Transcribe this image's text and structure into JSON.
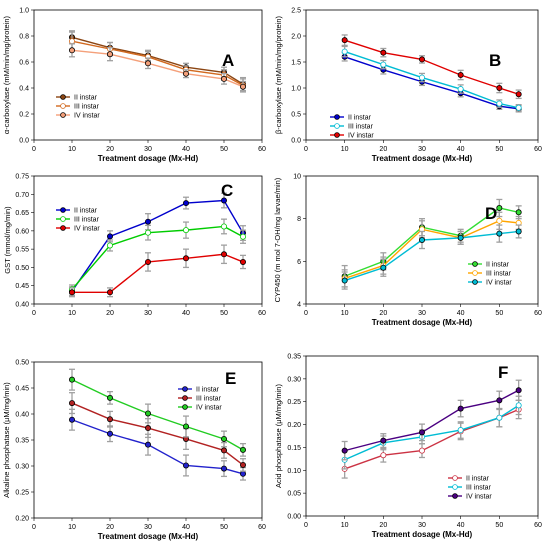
{
  "figure": {
    "chart_data": [
      {
        "type": "line",
        "panel_label": "A",
        "xlabel": "Treatment dosage (Mx-Hd)",
        "ylabel": "α-carboxylase (mM/min/mg/protein)",
        "xlim": [
          0,
          60
        ],
        "ylim": [
          0.0,
          1.0
        ],
        "xticks": [
          0,
          10,
          20,
          30,
          40,
          50,
          60
        ],
        "yticks": [
          0.0,
          0.2,
          0.4,
          0.6,
          0.8,
          1.0
        ],
        "x": [
          10,
          20,
          30,
          40,
          50,
          55
        ],
        "legend_position": "bottom-left",
        "series": [
          {
            "name": "II instar",
            "color": "#8b4513",
            "marker": "filled",
            "values": [
              0.79,
              0.71,
              0.65,
              0.56,
              0.52,
              0.43
            ],
            "errors": [
              0.05,
              0.04,
              0.04,
              0.03,
              0.04,
              0.05
            ]
          },
          {
            "name": "III instar",
            "color": "#d2691e",
            "marker": "open",
            "values": [
              0.76,
              0.7,
              0.64,
              0.54,
              0.5,
              0.42
            ],
            "errors": [
              0.07,
              0.05,
              0.04,
              0.03,
              0.04,
              0.05
            ]
          },
          {
            "name": "IV instar",
            "color": "#f4a07a",
            "marker": "filled",
            "values": [
              0.69,
              0.66,
              0.59,
              0.51,
              0.47,
              0.41
            ],
            "errors": [
              0.05,
              0.05,
              0.04,
              0.03,
              0.04,
              0.04
            ]
          }
        ]
      },
      {
        "type": "line",
        "panel_label": "B",
        "xlabel": "Treatment dosage (Mx-Hd)",
        "ylabel": "β-carboxylase (mM/min/mg/protein)",
        "xlim": [
          0,
          60
        ],
        "ylim": [
          0.0,
          2.5
        ],
        "xticks": [
          0,
          10,
          20,
          30,
          40,
          50,
          60
        ],
        "yticks": [
          0.0,
          0.5,
          1.0,
          1.5,
          2.0,
          2.5
        ],
        "x": [
          10,
          20,
          30,
          40,
          50,
          55
        ],
        "legend_position": "bottom-left",
        "series": [
          {
            "name": "II instar",
            "color": "#0000cc",
            "marker": "filled",
            "values": [
              1.6,
              1.35,
              1.12,
              0.9,
              0.65,
              0.6
            ],
            "errors": [
              0.08,
              0.08,
              0.07,
              0.07,
              0.06,
              0.06
            ]
          },
          {
            "name": "III instar",
            "color": "#00bcd4",
            "marker": "open",
            "values": [
              1.7,
              1.45,
              1.2,
              0.98,
              0.7,
              0.62
            ],
            "errors": [
              0.1,
              0.08,
              0.08,
              0.08,
              0.07,
              0.06
            ]
          },
          {
            "name": "IV instar",
            "color": "#e00000",
            "marker": "filled",
            "values": [
              1.92,
              1.68,
              1.55,
              1.25,
              1.0,
              0.88
            ],
            "errors": [
              0.1,
              0.08,
              0.07,
              0.09,
              0.09,
              0.08
            ]
          }
        ]
      },
      {
        "type": "line",
        "panel_label": "C",
        "xlabel": "",
        "ylabel": "GST (mmol/mg/min)",
        "xlim": [
          0,
          60
        ],
        "ylim": [
          0.4,
          0.75
        ],
        "xticks": [
          0,
          10,
          20,
          30,
          40,
          50,
          60
        ],
        "yticks": [
          0.4,
          0.45,
          0.5,
          0.55,
          0.6,
          0.65,
          0.7,
          0.75
        ],
        "x": [
          10,
          20,
          30,
          40,
          50,
          55
        ],
        "legend_position": "top-left",
        "series": [
          {
            "name": "II instar",
            "color": "#0000cc",
            "marker": "filled",
            "values": [
              0.435,
              0.585,
              0.625,
              0.676,
              0.683,
              0.594
            ],
            "errors": [
              0.012,
              0.015,
              0.022,
              0.016,
              0.02,
              0.02
            ]
          },
          {
            "name": "III instar",
            "color": "#00cc00",
            "marker": "open",
            "values": [
              0.44,
              0.56,
              0.595,
              0.602,
              0.612,
              0.584
            ],
            "errors": [
              0.012,
              0.015,
              0.02,
              0.022,
              0.02,
              0.018
            ]
          },
          {
            "name": "IV instar",
            "color": "#e00000",
            "marker": "filled",
            "values": [
              0.432,
              0.432,
              0.515,
              0.525,
              0.536,
              0.515
            ],
            "errors": [
              0.012,
              0.012,
              0.025,
              0.025,
              0.025,
              0.018
            ]
          }
        ]
      },
      {
        "type": "line",
        "panel_label": "D",
        "xlabel": "Treatment dosage (Mx-Hd)",
        "ylabel": "CYP450 (m mol 7-OH/mg larvae/min)",
        "xlim": [
          0,
          60
        ],
        "ylim": [
          4,
          10
        ],
        "xticks": [
          0,
          10,
          20,
          30,
          40,
          50,
          60
        ],
        "yticks": [
          4,
          6,
          8,
          10
        ],
        "x": [
          10,
          20,
          30,
          40,
          50,
          55
        ],
        "legend_position": "bottom-right",
        "series": [
          {
            "name": "II instar",
            "color": "#33dd33",
            "marker": "filled",
            "values": [
              5.3,
              6.0,
              7.6,
              7.2,
              8.5,
              8.3
            ],
            "errors": [
              0.5,
              0.4,
              0.4,
              0.3,
              0.4,
              0.3
            ]
          },
          {
            "name": "III instar",
            "color": "#ffa500",
            "marker": "open",
            "values": [
              5.2,
              5.8,
              7.5,
              7.1,
              7.9,
              7.8
            ],
            "errors": [
              0.4,
              0.4,
              0.4,
              0.3,
              0.4,
              0.3
            ]
          },
          {
            "name": "IV instar",
            "color": "#00bcd4",
            "marker": "filled",
            "values": [
              5.1,
              5.7,
              7.0,
              7.1,
              7.3,
              7.4
            ],
            "errors": [
              0.4,
              0.4,
              0.4,
              0.3,
              0.4,
              0.3
            ]
          }
        ]
      },
      {
        "type": "line",
        "panel_label": "E",
        "xlabel": "Treatment dosage (Mx-Hd)",
        "ylabel": "Alkaline phosphatase (μM/mg/min)",
        "xlim": [
          0,
          60
        ],
        "ylim": [
          0.2,
          0.5
        ],
        "xticks": [
          0,
          10,
          20,
          30,
          40,
          50,
          60
        ],
        "yticks": [
          0.2,
          0.25,
          0.3,
          0.35,
          0.4,
          0.45,
          0.5
        ],
        "x": [
          10,
          20,
          30,
          40,
          50,
          55
        ],
        "legend_position": "top-right",
        "series": [
          {
            "name": "II instar",
            "color": "#2222cc",
            "marker": "filled",
            "values": [
              0.389,
              0.362,
              0.341,
              0.301,
              0.295,
              0.285
            ],
            "errors": [
              0.02,
              0.015,
              0.02,
              0.02,
              0.015,
              0.012
            ]
          },
          {
            "name": "III instar",
            "color": "#b22222",
            "marker": "filled",
            "values": [
              0.421,
              0.39,
              0.373,
              0.352,
              0.33,
              0.302
            ],
            "errors": [
              0.02,
              0.015,
              0.018,
              0.02,
              0.015,
              0.012
            ]
          },
          {
            "name": "IV instar",
            "color": "#22cc22",
            "marker": "filled",
            "values": [
              0.466,
              0.431,
              0.401,
              0.376,
              0.352,
              0.331
            ],
            "errors": [
              0.02,
              0.012,
              0.018,
              0.02,
              0.015,
              0.012
            ]
          }
        ]
      },
      {
        "type": "line",
        "panel_label": "F",
        "xlabel": "Treatment dosage (Mx-Hd)",
        "ylabel": "Acid phosphatase (μM/mg/min)",
        "xlim": [
          0,
          60
        ],
        "ylim": [
          0.0,
          0.35
        ],
        "xticks": [
          0,
          10,
          20,
          30,
          40,
          50,
          60
        ],
        "yticks": [
          0.0,
          0.05,
          0.1,
          0.15,
          0.2,
          0.25,
          0.3,
          0.35
        ],
        "x": [
          10,
          20,
          30,
          40,
          50,
          55
        ],
        "legend_position": "bottom-right",
        "series": [
          {
            "name": "II instar",
            "color": "#cc3344",
            "marker": "open",
            "values": [
              0.103,
              0.133,
              0.143,
              0.185,
              0.215,
              0.233
            ],
            "errors": [
              0.02,
              0.015,
              0.015,
              0.018,
              0.02,
              0.02
            ]
          },
          {
            "name": "III instar",
            "color": "#00bcd4",
            "marker": "open",
            "values": [
              0.123,
              0.16,
              0.173,
              0.188,
              0.215,
              0.242
            ],
            "errors": [
              0.02,
              0.015,
              0.015,
              0.018,
              0.02,
              0.02
            ]
          },
          {
            "name": "IV instar",
            "color": "#4b0082",
            "marker": "filled",
            "values": [
              0.143,
              0.165,
              0.183,
              0.235,
              0.253,
              0.275
            ],
            "errors": [
              0.02,
              0.015,
              0.018,
              0.018,
              0.02,
              0.022
            ]
          }
        ]
      }
    ]
  }
}
